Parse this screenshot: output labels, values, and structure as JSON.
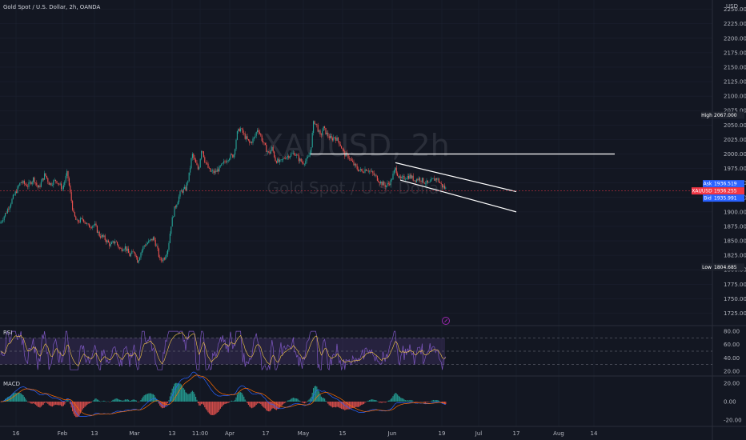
{
  "header": {
    "symbol_title": "Gold Spot / U.S. Dollar, 2h, OANDA",
    "currency": "USD"
  },
  "watermark": {
    "ticker": "XAUUSD, 2h",
    "name": "Gold Spot / U.S. Dollar"
  },
  "price_axis": {
    "ticks": [
      "2250.000",
      "2225.000",
      "2200.000",
      "2175.000",
      "2150.000",
      "2125.000",
      "2100.000",
      "2075.000",
      "2050.000",
      "2025.000",
      "2000.000",
      "1975.000",
      "1950.000",
      "1925.000",
      "1900.000",
      "1875.000",
      "1850.000",
      "1825.000",
      "1800.000",
      "1775.000",
      "1750.000",
      "1725.000"
    ],
    "tick_values": [
      2250,
      2225,
      2200,
      2175,
      2150,
      2125,
      2100,
      2075,
      2050,
      2025,
      2000,
      1975,
      1950,
      1925,
      1900,
      1875,
      1850,
      1825,
      1800,
      1775,
      1750,
      1725
    ]
  },
  "time_axis": {
    "labels": [
      "16",
      "Feb",
      "13",
      "Mar",
      "13",
      "11:00",
      "Apr",
      "17",
      "May",
      "15",
      "Jun",
      "19",
      "Jul",
      "17",
      "Aug",
      "14"
    ]
  },
  "price_tags": {
    "high": {
      "label": "High",
      "value": "2067.000"
    },
    "low": {
      "label": "Low",
      "value": "1804.685"
    },
    "ask": {
      "label": "Ask",
      "value": "1936.519"
    },
    "last": {
      "label": "XAUUSD",
      "value": "1936.255"
    },
    "bid": {
      "label": "Bid",
      "value": "1935.991"
    }
  },
  "rsi": {
    "label": "RSI",
    "ticks": [
      "80.00",
      "60.00",
      "40.00",
      "20.00"
    ],
    "tick_values": [
      80,
      60,
      40,
      20
    ]
  },
  "macd": {
    "label": "MACD",
    "ticks": [
      "20.00",
      "0.00",
      "-20.00"
    ],
    "tick_values": [
      20,
      0,
      -20
    ]
  },
  "colors": {
    "background": "#131722",
    "up": "#26a69a",
    "down": "#ef5350",
    "rsi_line": "#7e57c2",
    "rsi_band": "#7e57c2",
    "macd_line": "#2962ff",
    "signal_line": "#ff6d00",
    "last_price": "#f23645",
    "high_low_tag": "#1e222d",
    "ask_bid_tag": "#2962ff",
    "drawing": "#ffffff"
  },
  "chart_data": {
    "type": "candlestick",
    "title": "Gold Spot / U.S. Dollar, 2h, OANDA",
    "ylim": [
      1716,
      2260
    ],
    "price_path": [
      [
        0,
        1880
      ],
      [
        8,
        1900
      ],
      [
        14,
        1918
      ],
      [
        20,
        1935
      ],
      [
        26,
        1952
      ],
      [
        35,
        1945
      ],
      [
        42,
        1958
      ],
      [
        48,
        1940
      ],
      [
        56,
        1965
      ],
      [
        62,
        1948
      ],
      [
        70,
        1955
      ],
      [
        78,
        1940
      ],
      [
        84,
        1968
      ],
      [
        88,
        1930
      ],
      [
        92,
        1895
      ],
      [
        96,
        1882
      ],
      [
        104,
        1888
      ],
      [
        110,
        1875
      ],
      [
        118,
        1878
      ],
      [
        124,
        1860
      ],
      [
        130,
        1855
      ],
      [
        138,
        1842
      ],
      [
        144,
        1850
      ],
      [
        150,
        1835
      ],
      [
        156,
        1840
      ],
      [
        162,
        1825
      ],
      [
        168,
        1832
      ],
      [
        172,
        1815
      ],
      [
        176,
        1830
      ],
      [
        180,
        1842
      ],
      [
        186,
        1848
      ],
      [
        192,
        1855
      ],
      [
        196,
        1838
      ],
      [
        200,
        1816
      ],
      [
        205,
        1820
      ],
      [
        210,
        1838
      ],
      [
        214,
        1880
      ],
      [
        218,
        1905
      ],
      [
        222,
        1920
      ],
      [
        226,
        1935
      ],
      [
        232,
        1940
      ],
      [
        236,
        1962
      ],
      [
        240,
        2000
      ],
      [
        244,
        1985
      ],
      [
        248,
        1972
      ],
      [
        252,
        2012
      ],
      [
        256,
        1988
      ],
      [
        262,
        1970
      ],
      [
        268,
        1968
      ],
      [
        274,
        1975
      ],
      [
        280,
        1985
      ],
      [
        286,
        1995
      ],
      [
        292,
        1998
      ],
      [
        296,
        2035
      ],
      [
        300,
        2045
      ],
      [
        306,
        2030
      ],
      [
        312,
        2018
      ],
      [
        318,
        2028
      ],
      [
        322,
        2045
      ],
      [
        326,
        2030
      ],
      [
        330,
        2015
      ],
      [
        336,
        2000
      ],
      [
        340,
        2010
      ],
      [
        344,
        1990
      ],
      [
        350,
        1985
      ],
      [
        356,
        1995
      ],
      [
        362,
        1998
      ],
      [
        368,
        2002
      ],
      [
        374,
        1990
      ],
      [
        378,
        1985
      ],
      [
        384,
        1990
      ],
      [
        388,
        2005
      ],
      [
        392,
        2058
      ],
      [
        396,
        2048
      ],
      [
        400,
        2030
      ],
      [
        404,
        2045
      ],
      [
        408,
        2035
      ],
      [
        414,
        2025
      ],
      [
        418,
        2030
      ],
      [
        424,
        2020
      ],
      [
        430,
        2000
      ],
      [
        436,
        1995
      ],
      [
        440,
        1985
      ],
      [
        446,
        1975
      ],
      [
        452,
        1970
      ],
      [
        458,
        1975
      ],
      [
        464,
        1968
      ],
      [
        470,
        1960
      ],
      [
        476,
        1950
      ],
      [
        482,
        1945
      ],
      [
        488,
        1952
      ],
      [
        494,
        1975
      ],
      [
        500,
        1955
      ],
      [
        506,
        1960
      ],
      [
        512,
        1962
      ],
      [
        518,
        1955
      ],
      [
        524,
        1958
      ],
      [
        530,
        1952
      ],
      [
        536,
        1948
      ],
      [
        540,
        1955
      ],
      [
        546,
        1958
      ],
      [
        552,
        1945
      ],
      [
        557,
        1940
      ]
    ],
    "rsi_range": [
      20,
      80
    ],
    "macd_range": [
      -20,
      20
    ],
    "drawings": {
      "horizontal_level": 2000,
      "channel": [
        {
          "from": [
            494,
            1985
          ],
          "to": [
            645,
            1935
          ]
        },
        {
          "from": [
            500,
            1955
          ],
          "to": [
            645,
            1900
          ]
        }
      ]
    }
  }
}
